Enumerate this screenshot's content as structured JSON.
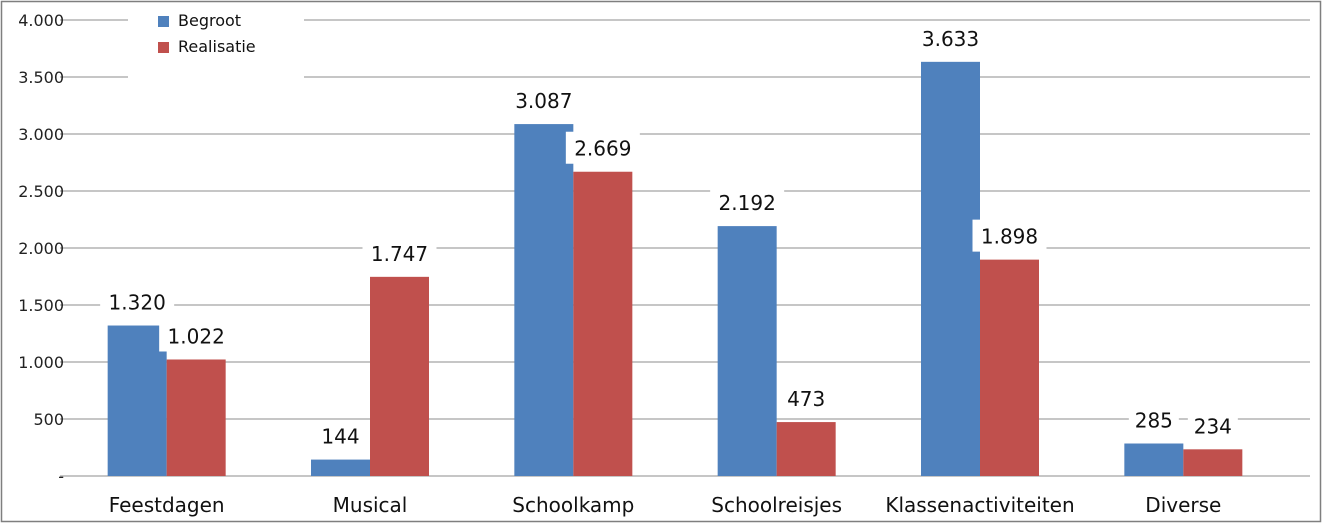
{
  "chart_data": {
    "type": "bar",
    "title": "",
    "xlabel": "",
    "ylabel": "",
    "categories": [
      "Feestdagen",
      "Musical",
      "Schoolkamp",
      "Schoolreisjes",
      "Klassenactiviteiten",
      "Diverse"
    ],
    "series": [
      {
        "name": "Begroot",
        "color": "#4F81BD",
        "values": [
          1320,
          144,
          3087,
          2192,
          3633,
          285
        ],
        "labels": [
          "1.320",
          "144",
          "3.087",
          "2.192",
          "3.633",
          "285"
        ]
      },
      {
        "name": "Realisatie",
        "color": "#C0504D",
        "values": [
          1022,
          1747,
          2669,
          473,
          1898,
          234
        ],
        "labels": [
          "1.022",
          "1.747",
          "2.669",
          "473",
          "1.898",
          "234"
        ]
      }
    ],
    "ylim": [
      0,
      4000
    ],
    "yticks": [
      0,
      500,
      1000,
      1500,
      2000,
      2500,
      3000,
      3500,
      4000
    ],
    "ytick_labels": [
      "-",
      "500",
      "1.000",
      "1.500",
      "2.000",
      "2.500",
      "3.000",
      "3.500",
      "4.000"
    ],
    "grid": true,
    "legend": "top-left"
  }
}
